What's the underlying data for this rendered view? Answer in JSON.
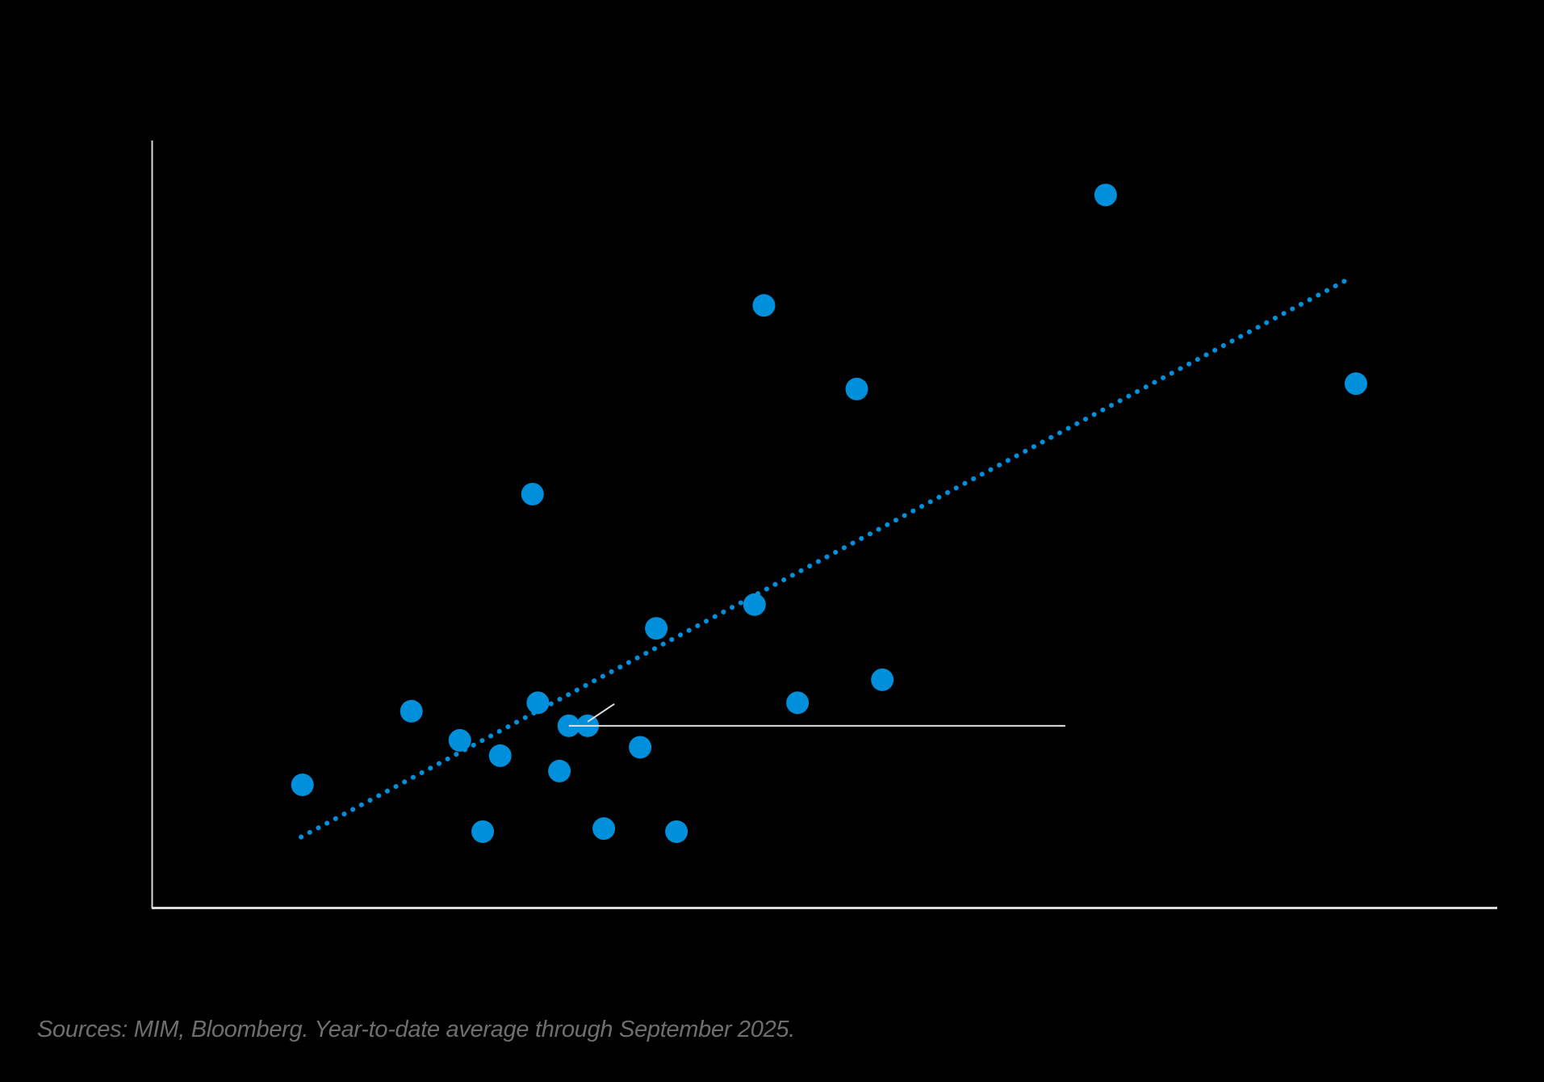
{
  "chart_data": {
    "type": "scatter",
    "title": "",
    "xlabel": "",
    "ylabel": "",
    "xlim": [
      0,
      100
    ],
    "ylim": [
      0,
      100
    ],
    "grid": false,
    "legend": null,
    "axis_note": "Axes unlabeled in render; values expressed as % of plot extent",
    "series": [
      {
        "name": "points",
        "color": "#0090DB",
        "points": [
          {
            "x": 11.2,
            "y": 16.0
          },
          {
            "x": 19.3,
            "y": 25.6
          },
          {
            "x": 22.9,
            "y": 21.8
          },
          {
            "x": 24.6,
            "y": 9.9
          },
          {
            "x": 25.9,
            "y": 19.8
          },
          {
            "x": 28.3,
            "y": 53.9
          },
          {
            "x": 28.7,
            "y": 26.7
          },
          {
            "x": 30.3,
            "y": 17.8
          },
          {
            "x": 31.0,
            "y": 23.7
          },
          {
            "x": 32.4,
            "y": 23.7
          },
          {
            "x": 33.6,
            "y": 10.3
          },
          {
            "x": 36.3,
            "y": 20.9
          },
          {
            "x": 37.5,
            "y": 36.4
          },
          {
            "x": 39.0,
            "y": 9.9
          },
          {
            "x": 44.8,
            "y": 39.5
          },
          {
            "x": 45.5,
            "y": 78.5
          },
          {
            "x": 48.0,
            "y": 26.7
          },
          {
            "x": 52.4,
            "y": 67.6
          },
          {
            "x": 54.3,
            "y": 29.7
          },
          {
            "x": 70.9,
            "y": 92.9
          },
          {
            "x": 89.5,
            "y": 68.3
          }
        ]
      }
    ],
    "trendline": {
      "style": "dotted",
      "color": "#0090DB",
      "start": {
        "x": 11.1,
        "y": 9.2
      },
      "end": {
        "x": 88.9,
        "y": 81.9
      }
    },
    "annotation": {
      "target_points": [
        8,
        9
      ],
      "line_end_x": 67.9,
      "text": ""
    }
  },
  "colors": {
    "background": "#000000",
    "axis": "#d9d9d9",
    "point": "#0090DB",
    "annotation_line": "#e0e0e0",
    "source_text": "#6e6e6e"
  },
  "footer": {
    "source": "Sources: MIM, Bloomberg. Year-to-date average through September 2025."
  }
}
